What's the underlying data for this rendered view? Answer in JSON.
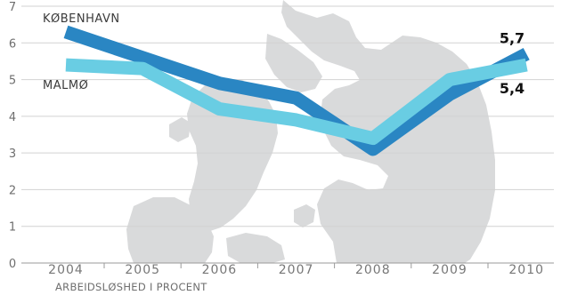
{
  "chart_data": {
    "type": "line",
    "x": [
      "2004",
      "2005",
      "2006",
      "2007",
      "2008",
      "2009",
      "2010"
    ],
    "yticks": [
      "0",
      "1",
      "2",
      "3",
      "4",
      "5",
      "6",
      "7"
    ],
    "ylim": [
      0,
      7
    ],
    "grid": true,
    "xlabel": "ARBEIDSLØSHED I PROCENT",
    "series": [
      {
        "name": "KØBENHAVN",
        "color": "#2a86c3",
        "values": [
          6.3,
          5.6,
          4.9,
          4.5,
          3.1,
          4.6,
          5.7
        ],
        "end_label": "5,7"
      },
      {
        "name": "MALMØ",
        "color": "#69cde3",
        "values": [
          5.4,
          5.3,
          4.2,
          3.9,
          3.4,
          5.0,
          5.4
        ],
        "end_label": "5,4"
      }
    ],
    "background": "map-of-oresund-region"
  }
}
